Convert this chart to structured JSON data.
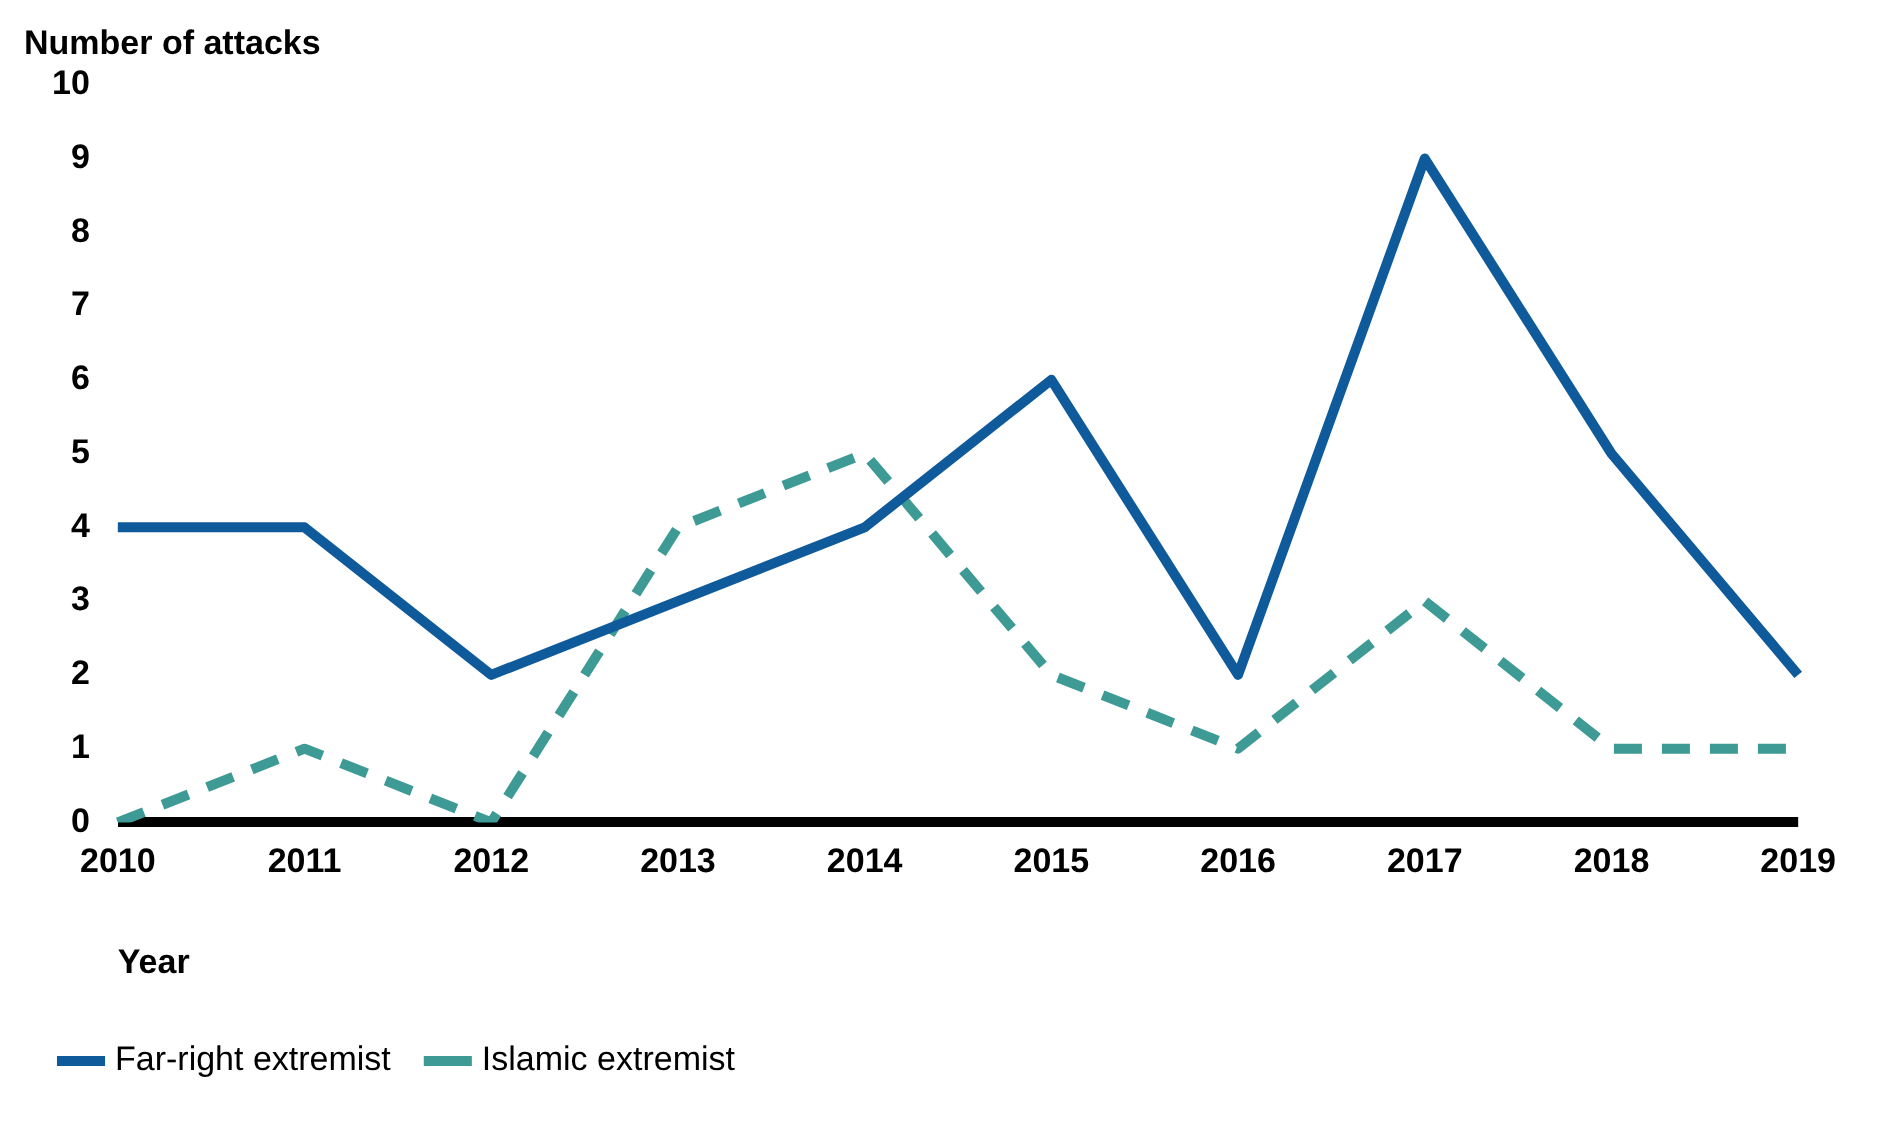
{
  "chart_data": {
    "type": "line",
    "ylabel": "Number of attacks",
    "xlabel": "Year",
    "categories": [
      "2010",
      "2011",
      "2012",
      "2013",
      "2014",
      "2015",
      "2016",
      "2017",
      "2018",
      "2019"
    ],
    "series": [
      {
        "name": "Far-right extremist",
        "color": "#0f5a9a",
        "values": [
          4,
          4,
          2,
          3,
          4,
          6,
          2,
          9,
          5,
          2
        ],
        "line_style": "solid"
      },
      {
        "name": "Islamic extremist",
        "color": "#3d9a94",
        "values": [
          0,
          1,
          0,
          4,
          5,
          2,
          1,
          3,
          1,
          1
        ],
        "line_style": "dashed"
      }
    ],
    "ylim": [
      0,
      10
    ],
    "yticks": [
      0,
      1,
      2,
      3,
      4,
      5,
      6,
      7,
      8,
      9,
      10
    ],
    "grid": false,
    "legend": "bottom left",
    "marker": "none"
  }
}
